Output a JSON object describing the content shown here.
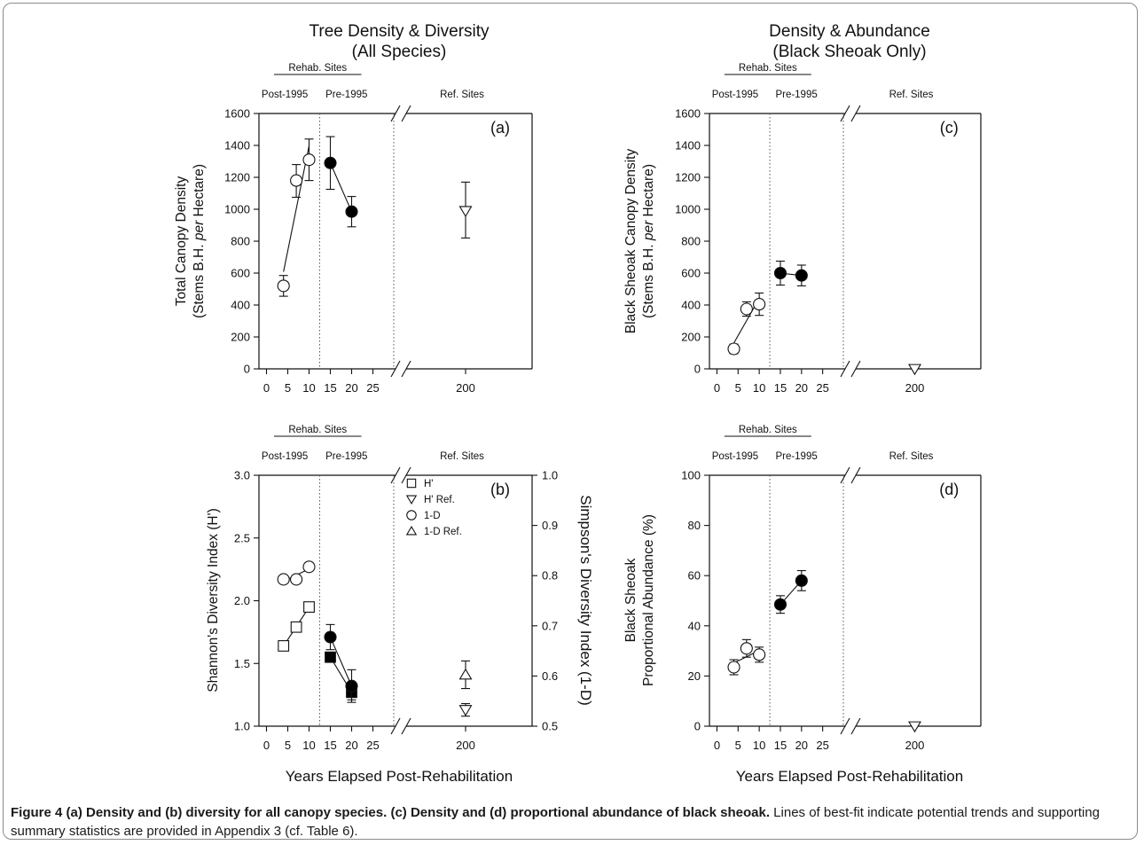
{
  "figure": {
    "col_titles": [
      {
        "line1": "Tree Density & Diversity",
        "line2": "(All Species)"
      },
      {
        "line1": "Density & Abundance",
        "line2": "(Black Sheoak Only)"
      }
    ],
    "xlabel": "Years Elapsed Post-Rehabilitation",
    "caption_bold": "Figure 4 (a) Density and (b) diversity for all canopy species. (c) Density and (d) proportional abundance of black sheoak.",
    "caption_rest": " Lines of best-fit indicate potential trends and supporting summary statistics are provided in Appendix 3 (cf. Table 6)."
  },
  "chart_data": [
    {
      "panel": "(a)",
      "type": "scatter",
      "ylabel_line1": "Total Canopy Density",
      "ylabel_line2_pre": "(Stems B.H. ",
      "ylabel_line2_italic": "per",
      "ylabel_line2_post": " Hectare)",
      "group_label": "Rehab. Sites",
      "sublabels": [
        "Post-1995",
        "Pre-1995",
        "Ref. Sites"
      ],
      "ylim": [
        0,
        1600
      ],
      "yticks": [
        "0",
        "200",
        "400",
        "600",
        "800",
        "1000",
        "1200",
        "1400",
        "1600"
      ],
      "xticks": [
        "0",
        "5",
        "10",
        "15",
        "20",
        "25",
        "200"
      ],
      "series": [
        {
          "marker": "circle",
          "fill": "open",
          "trend": true,
          "points": [
            {
              "x": 4,
              "y": 520,
              "lo": 455,
              "hi": 585
            },
            {
              "x": 7,
              "y": 1180,
              "lo": 1075,
              "hi": 1280
            },
            {
              "x": 10,
              "y": 1310,
              "lo": 1180,
              "hi": 1440
            }
          ]
        },
        {
          "marker": "circle",
          "fill": "solid",
          "trend": true,
          "points": [
            {
              "x": 15,
              "y": 1290,
              "lo": 1125,
              "hi": 1455
            },
            {
              "x": 20,
              "y": 985,
              "lo": 890,
              "hi": 1080
            }
          ]
        },
        {
          "marker": "triangle-down",
          "fill": "open",
          "trend": false,
          "points": [
            {
              "x": 200,
              "y": 990,
              "lo": 820,
              "hi": 1170
            }
          ]
        }
      ]
    },
    {
      "panel": "(b)",
      "type": "scatter",
      "ylabel": "Shannon's Diversity Index (H')",
      "y2label": "Simpson's Diversity Index (1-D)",
      "group_label": "Rehab. Sites",
      "sublabels": [
        "Post-1995",
        "Pre-1995",
        "Ref. Sites"
      ],
      "ylim": [
        1.0,
        3.0
      ],
      "yticks": [
        "1.0",
        "1.5",
        "2.0",
        "2.5",
        "3.0"
      ],
      "y2lim": [
        0.5,
        1.0
      ],
      "y2ticks": [
        "0.5",
        "0.6",
        "0.7",
        "0.8",
        "0.9",
        "1.0"
      ],
      "xticks": [
        "0",
        "5",
        "10",
        "15",
        "20",
        "25",
        "200"
      ],
      "legend": [
        "H'",
        "H' Ref.",
        "1-D",
        "1-D Ref."
      ],
      "series": [
        {
          "name": "H'",
          "marker": "square",
          "fill": "open",
          "axis": "left",
          "trend": true,
          "points": [
            {
              "x": 4,
              "y": 1.64
            },
            {
              "x": 7,
              "y": 1.79
            },
            {
              "x": 10,
              "y": 1.95
            }
          ]
        },
        {
          "name": "H'",
          "marker": "square",
          "fill": "solid",
          "axis": "left",
          "trend": true,
          "points": [
            {
              "x": 15,
              "y": 1.55,
              "lo": 1.51,
              "hi": 1.59
            },
            {
              "x": 20,
              "y": 1.27,
              "lo": 1.21,
              "hi": 1.33
            }
          ]
        },
        {
          "name": "1-D",
          "marker": "circle",
          "fill": "open",
          "axis": "left",
          "trend": true,
          "points": [
            {
              "x": 4,
              "y": 2.17
            },
            {
              "x": 7,
              "y": 2.17
            },
            {
              "x": 10,
              "y": 2.27
            }
          ]
        },
        {
          "name": "1-D",
          "marker": "circle",
          "fill": "solid",
          "axis": "left",
          "trend": true,
          "points": [
            {
              "x": 15,
              "y": 1.71,
              "lo": 1.61,
              "hi": 1.81
            },
            {
              "x": 20,
              "y": 1.32,
              "lo": 1.19,
              "hi": 1.45
            }
          ]
        },
        {
          "name": "H' Ref.",
          "marker": "triangle-down",
          "fill": "open",
          "axis": "left",
          "trend": false,
          "points": [
            {
              "x": 200,
              "y": 1.13,
              "lo": 1.08,
              "hi": 1.18
            }
          ]
        },
        {
          "name": "1-D Ref.",
          "marker": "triangle-up",
          "fill": "open",
          "axis": "left",
          "trend": false,
          "points": [
            {
              "x": 200,
              "y": 1.41,
              "lo": 1.3,
              "hi": 1.52
            }
          ]
        }
      ]
    },
    {
      "panel": "(c)",
      "type": "scatter",
      "ylabel_line1": "Black Sheoak Canopy Density",
      "ylabel_line2_pre": "(Stems B.H. ",
      "ylabel_line2_italic": "per",
      "ylabel_line2_post": " Hectare)",
      "group_label": "Rehab. Sites",
      "sublabels": [
        "Post-1995",
        "Pre-1995",
        "Ref. Sites"
      ],
      "ylim": [
        0,
        1600
      ],
      "yticks": [
        "0",
        "200",
        "400",
        "600",
        "800",
        "1000",
        "1200",
        "1400",
        "1600"
      ],
      "xticks": [
        "0",
        "5",
        "10",
        "15",
        "20",
        "25",
        "200"
      ],
      "series": [
        {
          "marker": "circle",
          "fill": "open",
          "trend": true,
          "points": [
            {
              "x": 4,
              "y": 125,
              "lo": 95,
              "hi": 155
            },
            {
              "x": 7,
              "y": 375,
              "lo": 330,
              "hi": 420
            },
            {
              "x": 10,
              "y": 405,
              "lo": 335,
              "hi": 475
            }
          ]
        },
        {
          "marker": "circle",
          "fill": "solid",
          "trend": true,
          "points": [
            {
              "x": 15,
              "y": 600,
              "lo": 525,
              "hi": 675
            },
            {
              "x": 20,
              "y": 585,
              "lo": 520,
              "hi": 650
            }
          ]
        },
        {
          "marker": "triangle-down",
          "fill": "open",
          "trend": false,
          "points": [
            {
              "x": 200,
              "y": 0
            }
          ]
        }
      ]
    },
    {
      "panel": "(d)",
      "type": "scatter",
      "ylabel_line1": "Black Sheoak",
      "ylabel_line2": "Proportional Abundance (%)",
      "group_label": "Rehab. Sites",
      "sublabels": [
        "Post-1995",
        "Pre-1995",
        "Ref. Sites"
      ],
      "ylim": [
        0,
        100
      ],
      "yticks": [
        "0",
        "20",
        "40",
        "60",
        "80",
        "100"
      ],
      "xticks": [
        "0",
        "5",
        "10",
        "15",
        "20",
        "25",
        "200"
      ],
      "series": [
        {
          "marker": "circle",
          "fill": "open",
          "trend": true,
          "points": [
            {
              "x": 4,
              "y": 23.5,
              "lo": 20.5,
              "hi": 26.5
            },
            {
              "x": 7,
              "y": 31,
              "lo": 27.5,
              "hi": 34.5
            },
            {
              "x": 10,
              "y": 28.5,
              "lo": 25.5,
              "hi": 31.5
            }
          ]
        },
        {
          "marker": "circle",
          "fill": "solid",
          "trend": true,
          "points": [
            {
              "x": 15,
              "y": 48.5,
              "lo": 45,
              "hi": 52
            },
            {
              "x": 20,
              "y": 58,
              "lo": 54,
              "hi": 62
            }
          ]
        },
        {
          "marker": "triangle-down",
          "fill": "open",
          "trend": false,
          "points": [
            {
              "x": 200,
              "y": 0
            }
          ]
        }
      ]
    }
  ]
}
